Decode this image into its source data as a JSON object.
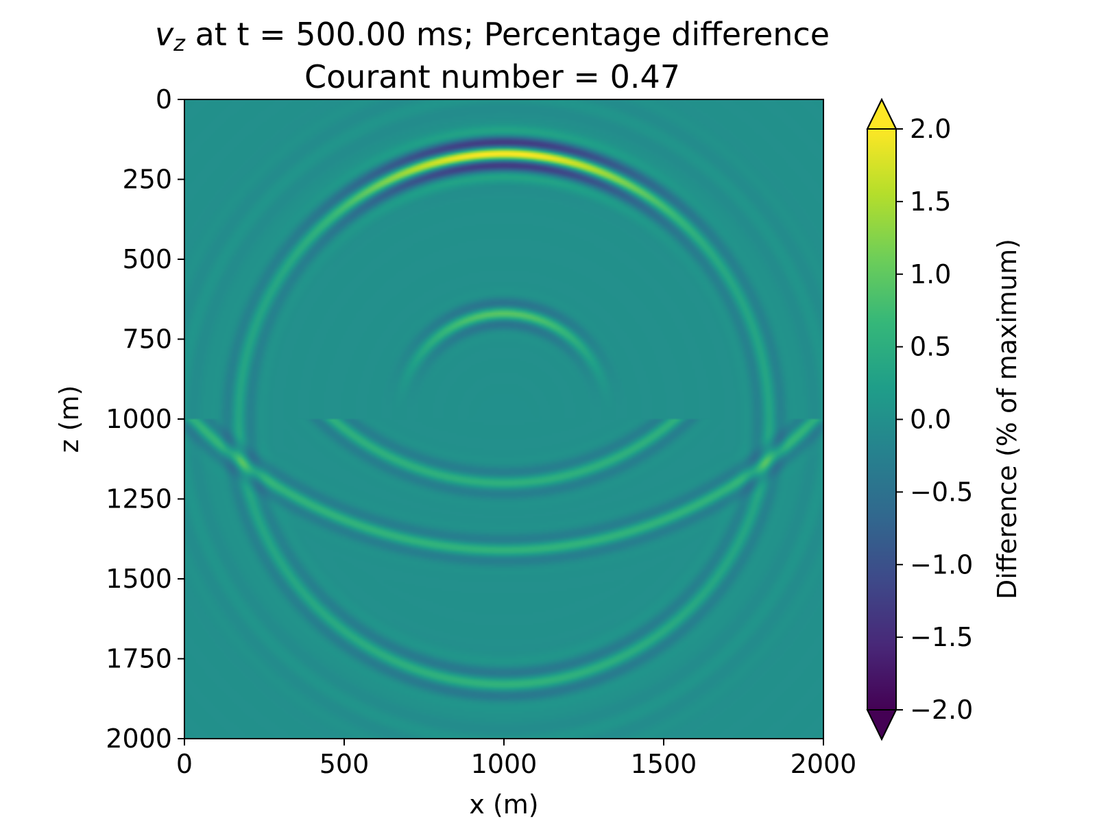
{
  "chart_data": {
    "type": "heatmap",
    "title_var": "v",
    "title_subscript": "z",
    "title_line1_rest": " at t = 500.00 ms; Percentage difference",
    "title_line2": "Courant number = 0.47",
    "xlabel": "x (m)",
    "ylabel": "z (m)",
    "xlim": [
      0,
      2000
    ],
    "ylim": [
      2000,
      0
    ],
    "x_ticks": [
      "0",
      "500",
      "1000",
      "1500",
      "2000"
    ],
    "y_ticks": [
      "0",
      "250",
      "500",
      "750",
      "1000",
      "1250",
      "1500",
      "1750",
      "2000"
    ],
    "x_tick_values": [
      0,
      500,
      1000,
      1500,
      2000
    ],
    "y_tick_values": [
      0,
      250,
      500,
      750,
      1000,
      1250,
      1500,
      1750,
      2000
    ],
    "colorbar": {
      "label": "Difference (% of maximum)",
      "range": [
        -2.0,
        2.0
      ],
      "extend": "both",
      "colormap": "viridis",
      "tick_values": [
        2.0,
        1.5,
        1.0,
        0.5,
        0.0,
        -0.5,
        -1.0,
        -1.5,
        -2.0
      ],
      "tick_labels": [
        "2.0",
        "1.5",
        "1.0",
        "0.5",
        "0.0",
        "−0.5",
        "−1.0",
        "−1.5",
        "−2.0"
      ]
    },
    "source": {
      "x": 1000,
      "z": 1000
    },
    "interface_depth": 1000,
    "features": [
      {
        "kind": "direct-wavefront",
        "center": [
          1000,
          1000
        ],
        "radius": 830,
        "amplitude": 2.0
      },
      {
        "kind": "inner-wavefront",
        "center": [
          1000,
          1000
        ],
        "radius": 330,
        "amplitude": 0.9
      },
      {
        "kind": "interface-wavefront",
        "radius": 580,
        "amplitude": 0.8
      }
    ],
    "background_value": 0.0,
    "colors": {
      "viridis": [
        "#440154",
        "#482878",
        "#3e4989",
        "#31688e",
        "#26828e",
        "#1f9e89",
        "#35b779",
        "#6ece58",
        "#b5de2b",
        "#fde725"
      ]
    }
  }
}
